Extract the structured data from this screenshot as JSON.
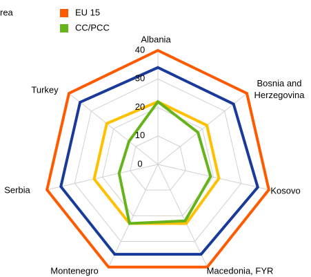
{
  "chart_data": {
    "type": "radar",
    "categories": [
      "Albania",
      "Bosnia and Herzegovina",
      "Kosovo",
      "Macedonia, FYR",
      "Montenegro",
      "Serbia",
      "Turkey"
    ],
    "rlim": [
      0,
      40
    ],
    "rticks": [
      0,
      10,
      20,
      30,
      40
    ],
    "grid": true,
    "series": [
      {
        "name": "EU 15",
        "color": "#ff5a00",
        "values": [
          40,
          40,
          40,
          40,
          40,
          40,
          40
        ]
      },
      {
        "name": "rea",
        "color": "#1a3a9a",
        "values": [
          34,
          34,
          36,
          35,
          35,
          35,
          35
        ]
      },
      {
        "color": "#ffc000",
        "values": [
          22,
          22,
          22,
          23,
          23,
          23,
          23
        ]
      },
      {
        "name": "CC/PCC",
        "color": "#66b31a",
        "values": [
          22,
          18,
          19,
          22,
          23,
          14,
          13
        ]
      }
    ]
  }
}
